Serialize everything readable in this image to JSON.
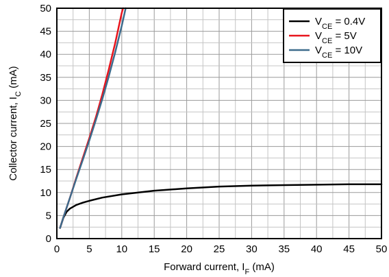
{
  "chart_data": {
    "type": "line",
    "xlabel": {
      "main": "Forward current, I",
      "sub": "F",
      "unit": " (mA)"
    },
    "ylabel": {
      "main": "Collector current, I",
      "sub": "C",
      "unit": " (mA)"
    },
    "xlim": [
      0,
      50
    ],
    "ylim": [
      0,
      50
    ],
    "x_ticks": [
      0,
      5,
      10,
      15,
      20,
      25,
      30,
      35,
      40,
      45,
      50
    ],
    "y_ticks": [
      0,
      5,
      10,
      15,
      20,
      25,
      30,
      35,
      40,
      45,
      50
    ],
    "grid": true,
    "legend_position": "top-right",
    "series": [
      {
        "name": "V_CE = 0.4V",
        "legend": {
          "main": "V",
          "sub": "CE",
          "rest": " = 0.4V"
        },
        "color": "#000000",
        "points": [
          [
            0.5,
            2.3
          ],
          [
            1,
            4.5
          ],
          [
            1.5,
            5.8
          ],
          [
            2,
            6.5
          ],
          [
            3,
            7.3
          ],
          [
            4,
            7.8
          ],
          [
            5,
            8.2
          ],
          [
            7,
            8.9
          ],
          [
            10,
            9.6
          ],
          [
            15,
            10.4
          ],
          [
            20,
            10.9
          ],
          [
            25,
            11.3
          ],
          [
            30,
            11.5
          ],
          [
            35,
            11.6
          ],
          [
            40,
            11.7
          ],
          [
            45,
            11.8
          ],
          [
            50,
            11.8
          ]
        ]
      },
      {
        "name": "V_CE = 5V",
        "legend": {
          "main": "V",
          "sub": "CE",
          "rest": " = 5V"
        },
        "color": "#e8141c",
        "points": [
          [
            0.5,
            2.3
          ],
          [
            1,
            4.6
          ],
          [
            2,
            8.8
          ],
          [
            3,
            13.2
          ],
          [
            4,
            17.5
          ],
          [
            5,
            21.8
          ],
          [
            6,
            26.3
          ],
          [
            7,
            31.3
          ],
          [
            8,
            36.7
          ],
          [
            9,
            42.5
          ],
          [
            10,
            49.0
          ],
          [
            10.2,
            50
          ]
        ]
      },
      {
        "name": "V_CE = 10V",
        "legend": {
          "main": "V",
          "sub": "CE",
          "rest": " = 10V"
        },
        "color": "#3d6b8c",
        "points": [
          [
            0.5,
            2.3
          ],
          [
            1,
            4.6
          ],
          [
            2,
            8.8
          ],
          [
            3,
            13.0
          ],
          [
            4,
            17.1
          ],
          [
            5,
            21.3
          ],
          [
            6,
            25.7
          ],
          [
            7,
            30.3
          ],
          [
            8,
            35.2
          ],
          [
            9,
            40.5
          ],
          [
            10,
            46.2
          ],
          [
            10.6,
            50
          ]
        ]
      }
    ]
  }
}
